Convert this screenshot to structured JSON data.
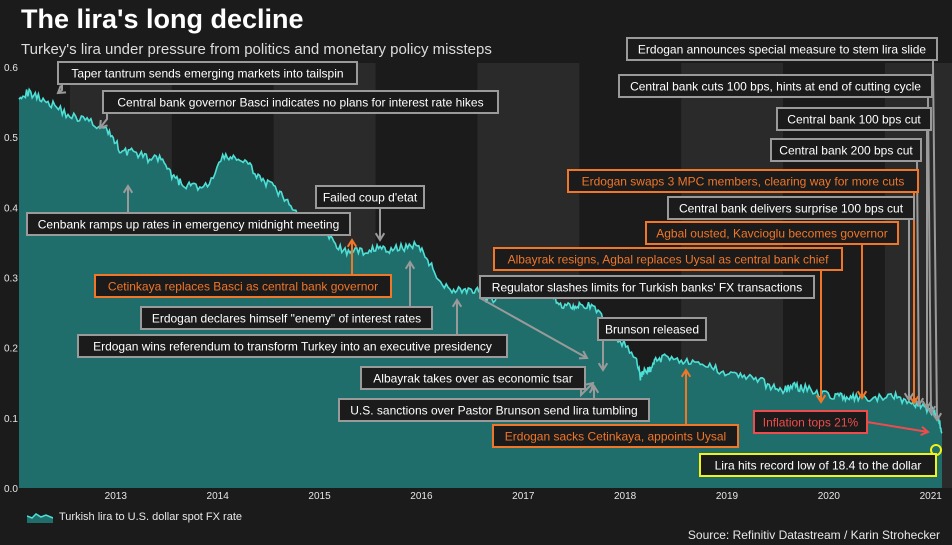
{
  "header": {
    "title": "The lira's long decline",
    "subtitle": "Turkey's lira under pressure from politics and monetary policy missteps"
  },
  "colors": {
    "background": "#1b1b1b",
    "band": "#2a2a2a",
    "area_fill": "#1f6e6b",
    "line": "#4ee0d6",
    "gray_box": "#9a9a9a",
    "orange_box": "#f07628",
    "red_box": "#ee4c4c",
    "yellow": "#f2f215"
  },
  "legend": {
    "label": "Turkish lira to U.S. dollar spot FX rate"
  },
  "source": "Source: Refinitiv Datastream / Karin Strohecker",
  "chart_data": {
    "type": "area",
    "title": "The lira's long decline",
    "ylabel": "",
    "xlabel": "",
    "ylim": [
      0,
      0.6
    ],
    "xlim": [
      2012.5,
      2021.58
    ],
    "y_ticks": [
      "0.0",
      "0.1",
      "0.2",
      "0.3",
      "0.4",
      "0.5",
      "0.6"
    ],
    "x_ticks": [
      "2013",
      "2014",
      "2015",
      "2016",
      "2017",
      "2018",
      "2019",
      "2020",
      "2021"
    ],
    "series": [
      {
        "name": "Turkish lira to U.S. dollar spot FX rate",
        "x": [
          2012.5,
          2012.6,
          2012.72,
          2012.85,
          2013.0,
          2013.15,
          2013.3,
          2013.4,
          2013.5,
          2013.62,
          2013.75,
          2013.88,
          2014.0,
          2014.08,
          2014.2,
          2014.35,
          2014.5,
          2014.62,
          2014.75,
          2014.88,
          2015.0,
          2015.12,
          2015.25,
          2015.38,
          2015.5,
          2015.62,
          2015.75,
          2015.88,
          2016.0,
          2016.12,
          2016.25,
          2016.38,
          2016.5,
          2016.6,
          2016.75,
          2016.88,
          2017.0,
          2017.1,
          2017.25,
          2017.4,
          2017.55,
          2017.7,
          2017.8,
          2017.92,
          2018.0,
          2018.12,
          2018.25,
          2018.4,
          2018.55,
          2018.6,
          2018.63,
          2018.7,
          2018.75,
          2018.85,
          2019.0,
          2019.15,
          2019.3,
          2019.45,
          2019.6,
          2019.75,
          2019.88,
          2020.0,
          2020.1,
          2020.2,
          2020.35,
          2020.5,
          2020.6,
          2020.7,
          2020.85,
          2021.0,
          2021.12,
          2021.25,
          2021.35,
          2021.45,
          2021.5,
          2021.53,
          2021.56
        ],
        "values": [
          0.56,
          0.563,
          0.556,
          0.545,
          0.53,
          0.525,
          0.515,
          0.505,
          0.48,
          0.48,
          0.47,
          0.47,
          0.445,
          0.435,
          0.43,
          0.43,
          0.47,
          0.472,
          0.46,
          0.44,
          0.428,
          0.41,
          0.385,
          0.365,
          0.368,
          0.344,
          0.335,
          0.338,
          0.342,
          0.338,
          0.342,
          0.348,
          0.33,
          0.3,
          0.282,
          0.283,
          0.28,
          0.265,
          0.275,
          0.285,
          0.29,
          0.28,
          0.262,
          0.26,
          0.262,
          0.258,
          0.24,
          0.21,
          0.19,
          0.158,
          0.165,
          0.17,
          0.182,
          0.188,
          0.183,
          0.175,
          0.172,
          0.165,
          0.16,
          0.155,
          0.144,
          0.14,
          0.145,
          0.143,
          0.135,
          0.132,
          0.13,
          0.128,
          0.125,
          0.13,
          0.13,
          0.121,
          0.118,
          0.112,
          0.105,
          0.095,
          0.08
        ]
      }
    ],
    "annotations": [
      {
        "text": "Taper tantrum sends emerging markets into tailspin",
        "color": "gray",
        "x": 2013.4
      },
      {
        "text": "Central bank governor Basci indicates no plans for interest rate hikes",
        "color": "gray",
        "x": 2013.3
      },
      {
        "text": "Cenbank ramps up rates in emergency midnight meeting",
        "color": "gray",
        "x": 2014.08
      },
      {
        "text": "Cetinkaya replaces Basci as central bank governor",
        "color": "orange",
        "x": 2015.85
      },
      {
        "text": "Failed coup d'etat",
        "color": "gray",
        "x": 2016.55
      },
      {
        "text": "Erdogan declares himself \"enemy\" of interest rates",
        "color": "gray",
        "x": 2016.3
      },
      {
        "text": "Erdogan wins referendum to transform Turkey into an executive presidency",
        "color": "gray",
        "x": 2017.27
      },
      {
        "text": "Regulator slashes limits for Turkish banks' FX transactions",
        "color": "gray",
        "x": 2018.07
      },
      {
        "text": "Brunson released",
        "color": "gray",
        "x": 2018.83
      },
      {
        "text": "Albayrak takes over as economic tsar",
        "color": "gray",
        "x": 2018.6
      },
      {
        "text": "U.S. sanctions over Pastor Brunson send lira tumbling",
        "color": "gray",
        "x": 2018.63
      },
      {
        "text": "Erdogan sacks Cetinkaya, appoints Uysal",
        "color": "orange",
        "x": 2019.53
      },
      {
        "text": "Erdogan announces special measure to stem lira slide",
        "color": "gray",
        "x": 2021.5
      },
      {
        "text": "Central bank cuts 100 bps, hints at end of cutting cycle",
        "color": "gray",
        "x": 2021.45
      },
      {
        "text": "Central bank 100 bps cut",
        "color": "gray",
        "x": 2021.47
      },
      {
        "text": "Central bank 200 bps cut",
        "color": "gray",
        "x": 2021.42
      },
      {
        "text": "Erdogan swaps 3 MPC members, clearing way for more cuts",
        "color": "orange",
        "x": 2021.35
      },
      {
        "text": "Central bank delivers surprise 100 bps cut",
        "color": "gray",
        "x": 2021.38
      },
      {
        "text": "Agbal ousted, Kavcioglu becomes governor",
        "color": "orange",
        "x": 2020.75
      },
      {
        "text": "Albayrak resigns, Agbal replaces Uysal as central bank chief",
        "color": "orange",
        "x": 2020.33
      },
      {
        "text": "Inflation tops 21%",
        "color": "red",
        "x": 2021.5
      },
      {
        "text": "Lira hits record low of 18.4 to the dollar",
        "color": "yellow",
        "x": 2021.53
      }
    ]
  }
}
